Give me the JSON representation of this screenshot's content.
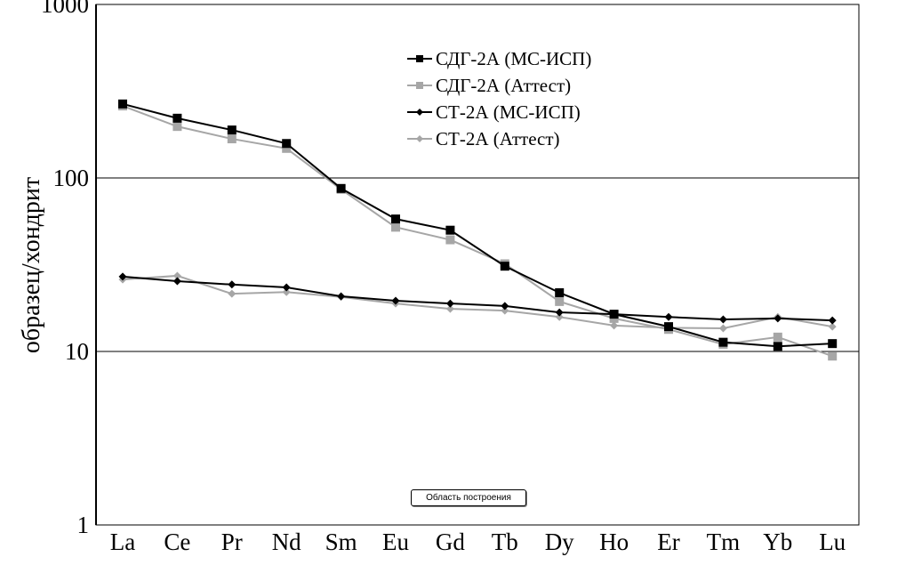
{
  "chart_data": {
    "type": "line",
    "title": "",
    "xlabel": "",
    "ylabel": "образец/хондрит",
    "yscale": "log",
    "ylim": [
      1,
      1000
    ],
    "yticks": [
      "1",
      "10",
      "100",
      "1000"
    ],
    "grid": "horizontal at decades",
    "legend_position": "top-center",
    "categories": [
      "La",
      "Ce",
      "Pr",
      "Nd",
      "Sm",
      "Eu",
      "Gd",
      "Tb",
      "Dy",
      "Ho",
      "Er",
      "Tm",
      "Yb",
      "Lu"
    ],
    "series": [
      {
        "name": "СДГ-2А (МС-ИСП)",
        "color": "#000000",
        "marker": "square",
        "values": [
          267,
          221,
          189,
          158,
          87,
          58,
          50,
          31,
          21.8,
          16.4,
          13.9,
          11.3,
          10.7,
          11.1
        ]
      },
      {
        "name": "СДГ-2А (Аттест)",
        "color": "#a6a6a6",
        "marker": "square",
        "values": [
          260,
          198,
          168,
          148,
          86,
          52,
          44,
          32,
          19.4,
          15.5,
          13.4,
          11,
          12.1,
          9.4
        ]
      },
      {
        "name": "СТ-2А (МС-ИСП)",
        "color": "#000000",
        "marker": "diamond",
        "values": [
          27,
          25.4,
          24.3,
          23.4,
          20.8,
          19.6,
          18.9,
          18.3,
          16.8,
          16.4,
          15.8,
          15.3,
          15.5,
          15.1
        ]
      },
      {
        "name": "СТ-2А (Аттест)",
        "color": "#a6a6a6",
        "marker": "diamond",
        "values": [
          26,
          27.3,
          21.5,
          22,
          20.6,
          18.9,
          17.6,
          17.2,
          15.8,
          14.1,
          13.7,
          13.6,
          15.8,
          13.9
        ]
      }
    ]
  },
  "tooltip": "Область построения"
}
